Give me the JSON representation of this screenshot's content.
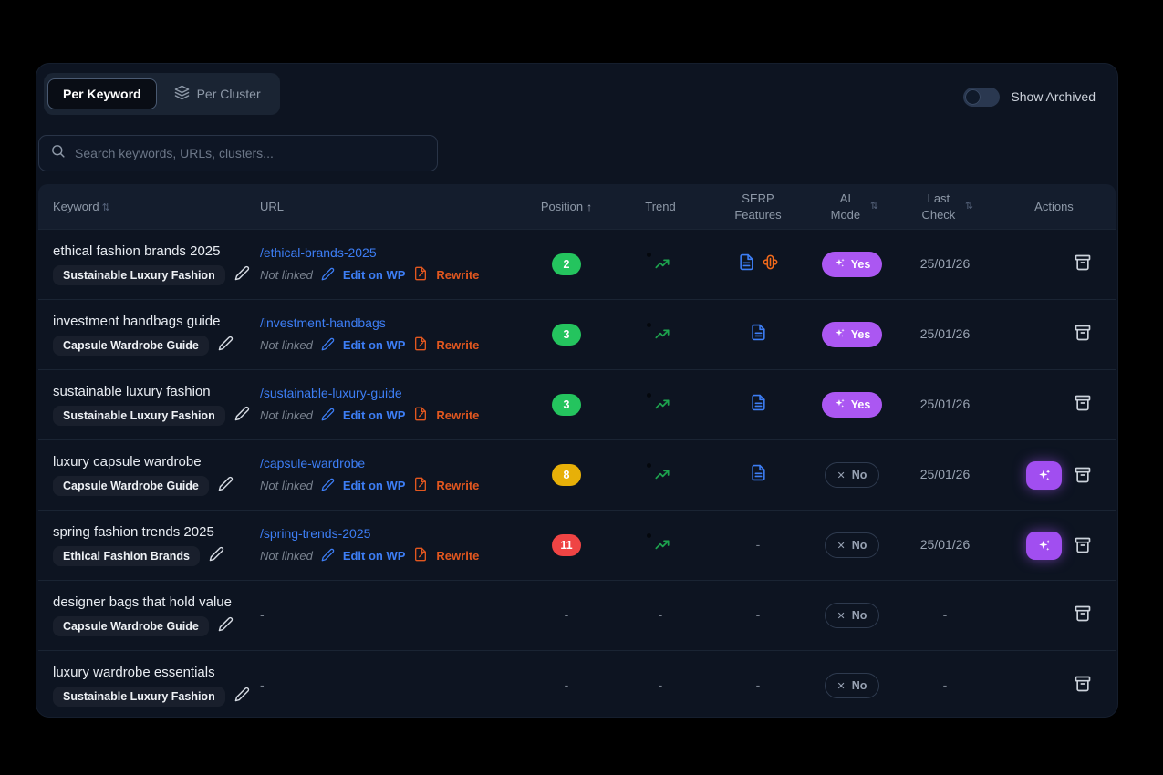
{
  "tabs": {
    "per_keyword": "Per Keyword",
    "per_cluster": "Per Cluster"
  },
  "toggle": {
    "label": "Show Archived",
    "state": "off"
  },
  "search": {
    "placeholder": "Search keywords, URLs, clusters..."
  },
  "colors": {
    "green": "#24c45e",
    "yellow": "#e7b008",
    "red": "#ef4444",
    "purple": "#ab57f2",
    "blue": "#3d7ef5",
    "orange": "#e2571f"
  },
  "table": {
    "headers": {
      "keyword": "Keyword",
      "url": "URL",
      "position": "Position",
      "trend": "Trend",
      "serp": "SERP Features",
      "ai": "AI Mode",
      "last": "Last Check",
      "actions": "Actions",
      "sort_glyph": "⇅",
      "position_sort_glyph": "↑"
    },
    "link_labels": {
      "not_linked": "Not linked",
      "edit_wp": "Edit on WP",
      "rewrite": "Rewrite"
    },
    "ai_labels": {
      "yes": "Yes",
      "no": "No",
      "x": "✕"
    },
    "empty": "-",
    "rows": [
      {
        "keyword": "ethical fashion brands 2025",
        "cluster": "Sustainable Luxury Fashion",
        "url": "/ethical-brands-2025",
        "linked": true,
        "position": "2",
        "position_color": "green",
        "trend": true,
        "serp": [
          "article",
          "ai-overview"
        ],
        "ai_mode": "Yes",
        "last_check": "25/01/26",
        "sparkle_action": false
      },
      {
        "keyword": "investment handbags guide",
        "cluster": "Capsule Wardrobe Guide",
        "url": "/investment-handbags",
        "linked": true,
        "position": "3",
        "position_color": "green",
        "trend": true,
        "serp": [
          "article"
        ],
        "ai_mode": "Yes",
        "last_check": "25/01/26",
        "sparkle_action": false
      },
      {
        "keyword": "sustainable luxury fashion",
        "cluster": "Sustainable Luxury Fashion",
        "url": "/sustainable-luxury-guide",
        "linked": true,
        "position": "3",
        "position_color": "green",
        "trend": true,
        "serp": [
          "article"
        ],
        "ai_mode": "Yes",
        "last_check": "25/01/26",
        "sparkle_action": false
      },
      {
        "keyword": "luxury capsule wardrobe",
        "cluster": "Capsule Wardrobe Guide",
        "url": "/capsule-wardrobe",
        "linked": true,
        "position": "8",
        "position_color": "yellow",
        "trend": true,
        "serp": [
          "article"
        ],
        "ai_mode": "No",
        "last_check": "25/01/26",
        "sparkle_action": true
      },
      {
        "keyword": "spring fashion trends 2025",
        "cluster": "Ethical Fashion Brands",
        "url": "/spring-trends-2025",
        "linked": true,
        "position": "11",
        "position_color": "red",
        "trend": true,
        "serp": [],
        "ai_mode": "No",
        "last_check": "25/01/26",
        "sparkle_action": true
      },
      {
        "keyword": "designer bags that hold value",
        "cluster": "Capsule Wardrobe Guide",
        "url": "",
        "linked": false,
        "position": "",
        "position_color": "",
        "trend": false,
        "serp": [],
        "ai_mode": "No",
        "last_check": "",
        "sparkle_action": false
      },
      {
        "keyword": "luxury wardrobe essentials",
        "cluster": "Sustainable Luxury Fashion",
        "url": "",
        "linked": false,
        "position": "",
        "position_color": "",
        "trend": false,
        "serp": [],
        "ai_mode": "No",
        "last_check": "",
        "sparkle_action": false
      }
    ]
  }
}
